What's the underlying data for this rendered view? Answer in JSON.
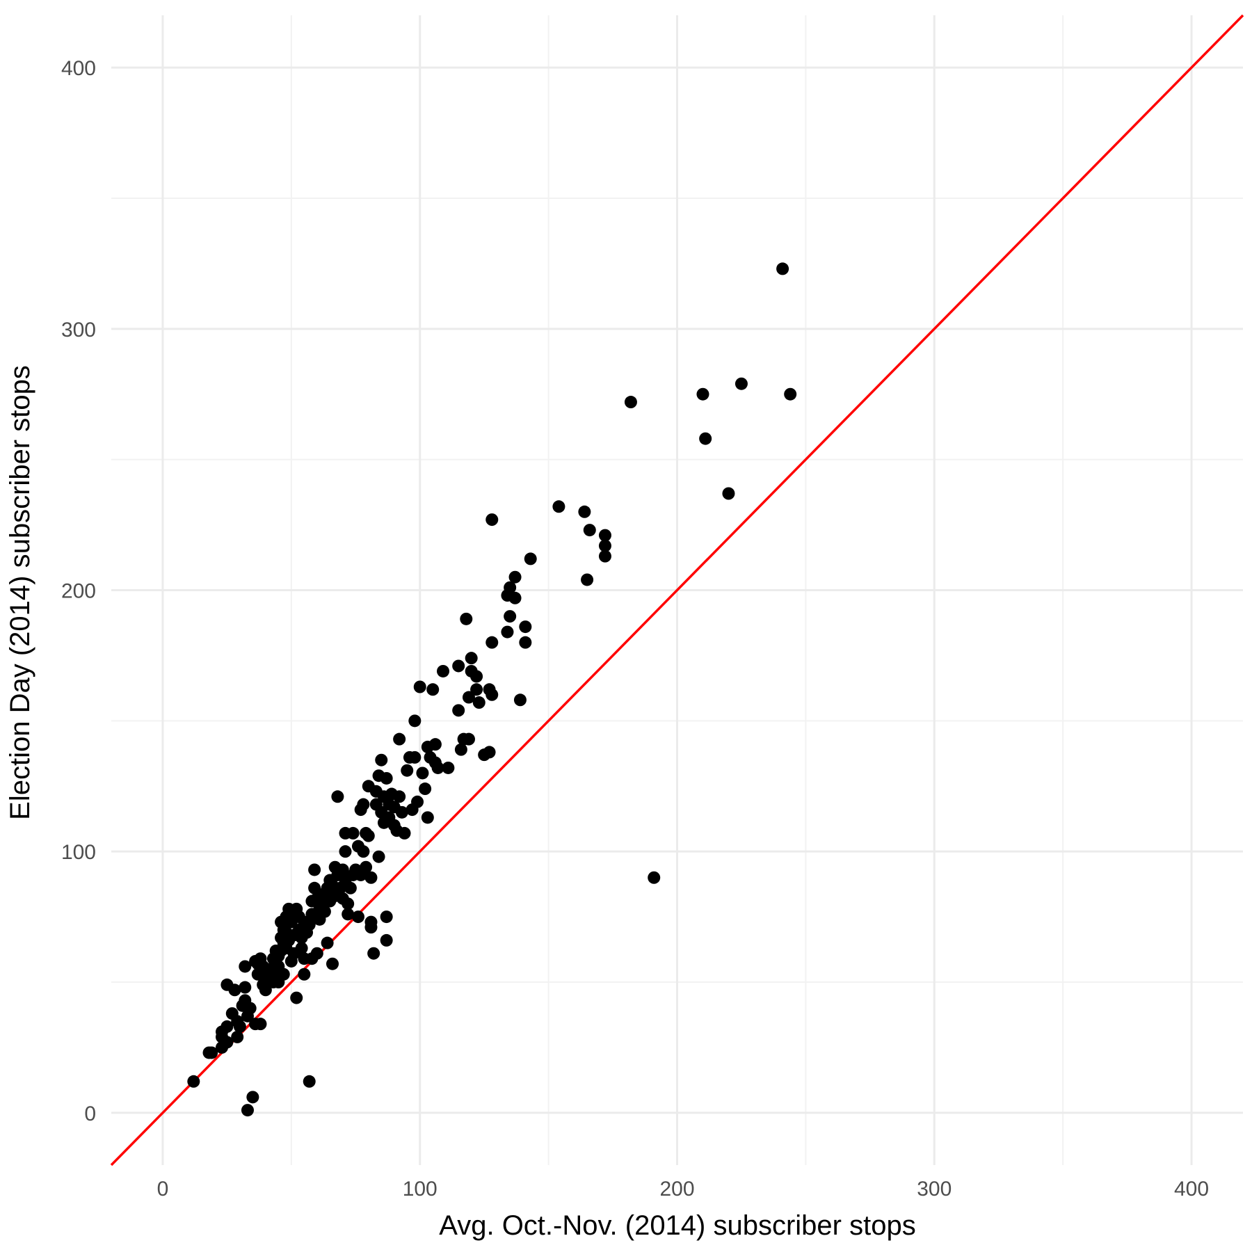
{
  "chart_data": {
    "type": "scatter",
    "title": "",
    "xlabel": "Avg. Oct.-Nov. (2014) subscriber stops",
    "ylabel": "Election Day (2014) subscriber stops",
    "xlim": [
      -20,
      420
    ],
    "ylim": [
      -20,
      420
    ],
    "x_ticks": [
      0,
      100,
      200,
      300,
      400
    ],
    "y_ticks": [
      0,
      100,
      200,
      300,
      400
    ],
    "grid": true,
    "point_color": "#000000",
    "reference_line": {
      "slope": 1,
      "intercept": 0,
      "color": "#ff0000"
    },
    "points": [
      [
        12,
        12
      ],
      [
        18,
        23
      ],
      [
        19,
        23
      ],
      [
        23,
        25
      ],
      [
        23,
        29
      ],
      [
        23,
        31
      ],
      [
        25,
        27
      ],
      [
        25,
        33
      ],
      [
        25,
        49
      ],
      [
        27,
        38
      ],
      [
        28,
        47
      ],
      [
        29,
        35
      ],
      [
        29,
        29
      ],
      [
        30,
        33
      ],
      [
        31,
        41
      ],
      [
        32,
        48
      ],
      [
        32,
        43
      ],
      [
        32,
        56
      ],
      [
        33,
        1
      ],
      [
        33,
        37
      ],
      [
        34,
        40
      ],
      [
        35,
        6
      ],
      [
        36,
        58
      ],
      [
        36,
        34
      ],
      [
        37,
        53
      ],
      [
        37,
        57
      ],
      [
        38,
        34
      ],
      [
        38,
        59
      ],
      [
        39,
        49
      ],
      [
        39,
        56
      ],
      [
        40,
        54
      ],
      [
        40,
        47
      ],
      [
        41,
        52
      ],
      [
        42,
        55
      ],
      [
        43,
        59
      ],
      [
        43,
        50
      ],
      [
        44,
        62
      ],
      [
        44,
        53
      ],
      [
        45,
        60
      ],
      [
        45,
        56
      ],
      [
        45,
        50
      ],
      [
        46,
        67
      ],
      [
        46,
        62
      ],
      [
        46,
        73
      ],
      [
        47,
        70
      ],
      [
        47,
        65
      ],
      [
        47,
        53
      ],
      [
        48,
        75
      ],
      [
        48,
        69
      ],
      [
        48,
        63
      ],
      [
        49,
        78
      ],
      [
        49,
        66
      ],
      [
        50,
        74
      ],
      [
        50,
        58
      ],
      [
        50,
        73
      ],
      [
        51,
        61
      ],
      [
        51,
        68
      ],
      [
        52,
        44
      ],
      [
        52,
        78
      ],
      [
        53,
        75
      ],
      [
        53,
        70
      ],
      [
        54,
        63
      ],
      [
        54,
        67
      ],
      [
        55,
        73
      ],
      [
        55,
        53
      ],
      [
        55,
        59
      ],
      [
        56,
        69
      ],
      [
        57,
        12
      ],
      [
        57,
        72
      ],
      [
        58,
        81
      ],
      [
        58,
        59
      ],
      [
        58,
        76
      ],
      [
        59,
        93
      ],
      [
        59,
        86
      ],
      [
        60,
        82
      ],
      [
        60,
        61
      ],
      [
        61,
        78
      ],
      [
        61,
        74
      ],
      [
        62,
        80
      ],
      [
        63,
        84
      ],
      [
        63,
        77
      ],
      [
        64,
        86
      ],
      [
        64,
        65
      ],
      [
        65,
        89
      ],
      [
        65,
        81
      ],
      [
        66,
        57
      ],
      [
        66,
        87
      ],
      [
        67,
        94
      ],
      [
        67,
        83
      ],
      [
        68,
        121
      ],
      [
        68,
        91
      ],
      [
        69,
        86
      ],
      [
        70,
        93
      ],
      [
        70,
        82
      ],
      [
        71,
        107
      ],
      [
        71,
        100
      ],
      [
        71,
        89
      ],
      [
        72,
        80
      ],
      [
        72,
        76
      ],
      [
        73,
        86
      ],
      [
        74,
        107
      ],
      [
        74,
        91
      ],
      [
        75,
        93
      ],
      [
        76,
        102
      ],
      [
        76,
        75
      ],
      [
        77,
        91
      ],
      [
        77,
        116
      ],
      [
        78,
        100
      ],
      [
        78,
        118
      ],
      [
        79,
        107
      ],
      [
        79,
        94
      ],
      [
        80,
        125
      ],
      [
        80,
        106
      ],
      [
        81,
        90
      ],
      [
        81,
        73
      ],
      [
        81,
        71
      ],
      [
        82,
        61
      ],
      [
        83,
        118
      ],
      [
        83,
        123
      ],
      [
        84,
        129
      ],
      [
        84,
        98
      ],
      [
        85,
        135
      ],
      [
        85,
        115
      ],
      [
        86,
        111
      ],
      [
        86,
        121
      ],
      [
        87,
        128
      ],
      [
        87,
        75
      ],
      [
        87,
        66
      ],
      [
        88,
        113
      ],
      [
        88,
        118
      ],
      [
        89,
        122
      ],
      [
        90,
        117
      ],
      [
        90,
        110
      ],
      [
        91,
        108
      ],
      [
        92,
        121
      ],
      [
        92,
        143
      ],
      [
        93,
        115
      ],
      [
        94,
        107
      ],
      [
        95,
        131
      ],
      [
        96,
        136
      ],
      [
        97,
        116
      ],
      [
        98,
        150
      ],
      [
        98,
        136
      ],
      [
        99,
        119
      ],
      [
        100,
        163
      ],
      [
        101,
        130
      ],
      [
        102,
        124
      ],
      [
        103,
        140
      ],
      [
        103,
        113
      ],
      [
        104,
        136
      ],
      [
        105,
        162
      ],
      [
        106,
        141
      ],
      [
        106,
        134
      ],
      [
        107,
        132
      ],
      [
        109,
        169
      ],
      [
        111,
        132
      ],
      [
        115,
        154
      ],
      [
        115,
        171
      ],
      [
        116,
        139
      ],
      [
        117,
        143
      ],
      [
        118,
        189
      ],
      [
        119,
        143
      ],
      [
        119,
        159
      ],
      [
        120,
        169
      ],
      [
        120,
        174
      ],
      [
        122,
        162
      ],
      [
        122,
        167
      ],
      [
        123,
        157
      ],
      [
        125,
        137
      ],
      [
        127,
        138
      ],
      [
        127,
        162
      ],
      [
        128,
        180
      ],
      [
        128,
        160
      ],
      [
        128,
        227
      ],
      [
        134,
        184
      ],
      [
        134,
        198
      ],
      [
        135,
        201
      ],
      [
        135,
        190
      ],
      [
        137,
        205
      ],
      [
        137,
        197
      ],
      [
        139,
        158
      ],
      [
        141,
        186
      ],
      [
        141,
        180
      ],
      [
        143,
        212
      ],
      [
        154,
        232
      ],
      [
        164,
        230
      ],
      [
        165,
        204
      ],
      [
        166,
        223
      ],
      [
        172,
        221
      ],
      [
        172,
        217
      ],
      [
        172,
        213
      ],
      [
        182,
        272
      ],
      [
        191,
        90
      ],
      [
        210,
        275
      ],
      [
        211,
        258
      ],
      [
        220,
        237
      ],
      [
        225,
        279
      ],
      [
        241,
        323
      ],
      [
        244,
        275
      ]
    ]
  }
}
